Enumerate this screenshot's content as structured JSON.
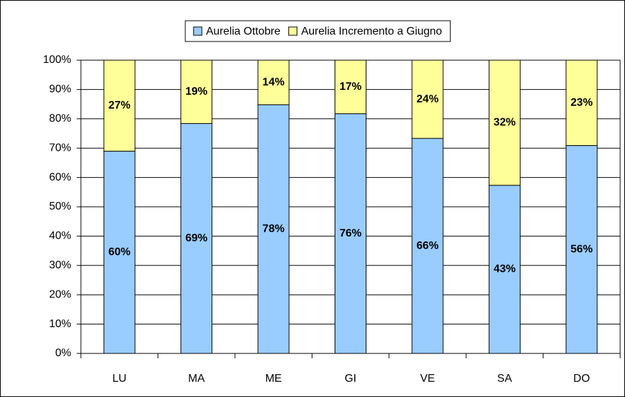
{
  "chart_data": {
    "type": "bar",
    "stack": "percent",
    "categories": [
      "LU",
      "MA",
      "ME",
      "GI",
      "VE",
      "SA",
      "DO"
    ],
    "series": [
      {
        "name": "Aurelia Ottobre",
        "color": "#99ccff",
        "values": [
          60,
          69,
          78,
          76,
          66,
          43,
          56
        ],
        "value_labels": [
          "60%",
          "69%",
          "78%",
          "76%",
          "66%",
          "43%",
          "56%"
        ]
      },
      {
        "name": "Aurelia Incremento a Giugno",
        "color": "#ffff99",
        "values": [
          27,
          19,
          14,
          17,
          24,
          32,
          23
        ],
        "value_labels": [
          "27%",
          "19%",
          "14%",
          "17%",
          "24%",
          "32%",
          "23%"
        ]
      }
    ],
    "ylim": [
      0,
      100
    ],
    "yticks": [
      {
        "value": 0,
        "label": "0%"
      },
      {
        "value": 10,
        "label": "10%"
      },
      {
        "value": 20,
        "label": "20%"
      },
      {
        "value": 30,
        "label": "30%"
      },
      {
        "value": 40,
        "label": "40%"
      },
      {
        "value": 50,
        "label": "50%"
      },
      {
        "value": 60,
        "label": "60%"
      },
      {
        "value": 70,
        "label": "70%"
      },
      {
        "value": 80,
        "label": "80%"
      },
      {
        "value": 90,
        "label": "90%"
      },
      {
        "value": 100,
        "label": "100%"
      }
    ],
    "grid": true,
    "legend": "top"
  }
}
